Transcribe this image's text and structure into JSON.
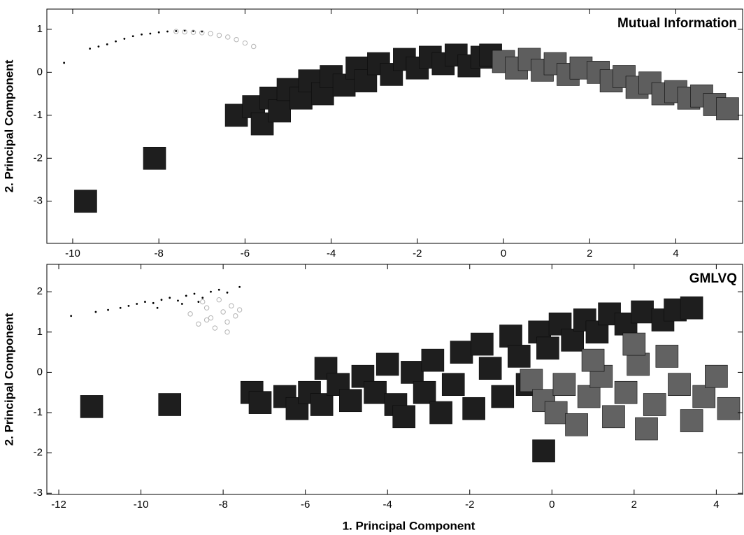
{
  "chart_data": [
    {
      "type": "scatter",
      "title": "Mutual Information",
      "y_label": "2. Principal Component",
      "xlim": [
        -10.6,
        5.55
      ],
      "ylim": [
        -3.98,
        1.47
      ],
      "xticks": [
        -10,
        -8,
        -6,
        -4,
        -2,
        0,
        2,
        4
      ],
      "yticks": [
        -3,
        -2,
        -1,
        0,
        1
      ],
      "series": [
        {
          "color": "#1e1e1e",
          "marker": "square",
          "x": [
            -6.2,
            -5.8,
            -5.6,
            -5.4,
            -5.2,
            -5,
            -4.7,
            -4.5,
            -4.2,
            -4,
            -3.7,
            -3.4,
            -3.2,
            -2.9,
            -2.6,
            -2.3,
            -2,
            -1.7,
            -1.4,
            -1.1,
            -0.8,
            -0.5,
            -0.3,
            -8.1,
            -9.7
          ],
          "y": [
            -1.0,
            -0.8,
            -1.2,
            -0.6,
            -0.9,
            -0.4,
            -0.6,
            -0.2,
            -0.5,
            -0.1,
            -0.3,
            0.1,
            -0.2,
            0.2,
            -0.05,
            0.3,
            0.1,
            0.35,
            0.2,
            0.4,
            0.15,
            0.35,
            0.4,
            -2.0,
            -3.0
          ]
        },
        {
          "color": "#5e5e5e",
          "marker": "square",
          "x": [
            0,
            0.3,
            0.6,
            0.9,
            1.2,
            1.5,
            1.8,
            2.2,
            2.5,
            2.8,
            3.1,
            3.4,
            3.7,
            4,
            4.3,
            4.6,
            4.9,
            5.2
          ],
          "y": [
            0.25,
            0.1,
            0.3,
            0.05,
            0.2,
            -0.05,
            0.1,
            0,
            -0.2,
            -0.1,
            -0.35,
            -0.25,
            -0.5,
            -0.45,
            -0.6,
            -0.55,
            -0.75,
            -0.85
          ]
        },
        {
          "color": "#000000",
          "marker": "dot",
          "x": [
            -10.2,
            -9.6,
            -9.4,
            -9.2,
            -9,
            -8.8,
            -8.6,
            -8.4,
            -8.2,
            -8,
            -7.8,
            -7.6,
            -7.4,
            -7.2,
            -7
          ],
          "y": [
            0.22,
            0.55,
            0.6,
            0.65,
            0.72,
            0.78,
            0.84,
            0.88,
            0.9,
            0.93,
            0.95,
            0.96,
            0.97,
            0.96,
            0.95
          ]
        },
        {
          "color": "#b4b4b4",
          "marker": "circle",
          "x": [
            -7.6,
            -7.4,
            -7.2,
            -7,
            -6.8,
            -6.6,
            -6.4,
            -6.2,
            -6,
            -5.8
          ],
          "y": [
            0.95,
            0.94,
            0.93,
            0.92,
            0.9,
            0.86,
            0.82,
            0.76,
            0.68,
            0.6
          ]
        }
      ]
    },
    {
      "type": "scatter",
      "title": "GMLVQ",
      "x_label": "1. Principal Component",
      "y_label": "2. Principal Component",
      "xlim": [
        -12.29,
        4.64
      ],
      "ylim": [
        -3.03,
        2.68
      ],
      "xticks": [
        -12,
        -10,
        -8,
        -6,
        -4,
        -2,
        0,
        2,
        4
      ],
      "yticks": [
        -3,
        -2,
        -1,
        0,
        1,
        2
      ],
      "series": [
        {
          "color": "#1e1e1e",
          "marker": "square",
          "x": [
            -11.2,
            -9.3,
            -7.3,
            -7.1,
            -6.5,
            -6.2,
            -5.9,
            -5.6,
            -5.5,
            -5.2,
            -4.9,
            -4.6,
            -4.3,
            -4,
            -3.8,
            -3.6,
            -3.4,
            -3.1,
            -2.9,
            -2.7,
            -2.4,
            -2.2,
            -1.9,
            -1.7,
            -1.5,
            -1.2,
            -1,
            -0.8,
            -0.6,
            -0.3,
            -0.1,
            0.2,
            0.5,
            0.8,
            1.1,
            1.4,
            1.8,
            2.2,
            2.7,
            3.0,
            3.4,
            -0.2
          ],
          "y": [
            -0.85,
            -0.8,
            -0.5,
            -0.75,
            -0.6,
            -0.9,
            -0.5,
            -0.8,
            0.1,
            -0.3,
            -0.7,
            -0.1,
            -0.5,
            0.2,
            -0.8,
            -1.1,
            0,
            -0.5,
            0.3,
            -1.0,
            -0.3,
            0.5,
            -0.9,
            0.7,
            0.1,
            -0.6,
            0.9,
            0.4,
            -0.3,
            1.0,
            0.6,
            1.2,
            0.8,
            1.3,
            1.0,
            1.45,
            1.2,
            1.5,
            1.3,
            1.55,
            1.6,
            -1.95
          ]
        },
        {
          "color": "#626262",
          "marker": "square",
          "x": [
            -0.5,
            -0.2,
            0.1,
            0.3,
            0.6,
            0.9,
            1.2,
            1.5,
            1.8,
            2.1,
            2.3,
            2.5,
            2.8,
            3.1,
            3.4,
            3.7,
            4.0,
            4.3,
            1.0,
            2.0
          ],
          "y": [
            -0.2,
            -0.7,
            -1.0,
            -0.3,
            -1.3,
            -0.6,
            -0.1,
            -1.1,
            -0.5,
            0.2,
            -1.4,
            -0.8,
            0.4,
            -0.3,
            -1.2,
            -0.6,
            -0.1,
            -0.9,
            0.3,
            0.7
          ]
        },
        {
          "color": "#000000",
          "marker": "dot",
          "x": [
            -11.7,
            -11.1,
            -10.8,
            -10.5,
            -10.3,
            -10.1,
            -9.9,
            -9.7,
            -9.5,
            -9.3,
            -9.1,
            -8.9,
            -8.7,
            -8.5,
            -8.3,
            -8.1,
            -7.9,
            -7.6,
            -9.6,
            -9.0,
            -8.6
          ],
          "y": [
            1.4,
            1.5,
            1.55,
            1.6,
            1.65,
            1.7,
            1.75,
            1.72,
            1.8,
            1.85,
            1.78,
            1.9,
            1.95,
            1.85,
            2.0,
            2.05,
            1.98,
            2.12,
            1.6,
            1.7,
            1.75
          ]
        },
        {
          "color": "#b4b4b4",
          "marker": "circle",
          "x": [
            -8.8,
            -8.6,
            -8.4,
            -8.3,
            -8.2,
            -8.0,
            -7.9,
            -7.8,
            -7.7,
            -7.6,
            -8.5,
            -8.1,
            -7.9,
            -8.4
          ],
          "y": [
            1.45,
            1.2,
            1.6,
            1.35,
            1.1,
            1.5,
            1.25,
            1.65,
            1.4,
            1.55,
            1.75,
            1.8,
            1.0,
            1.3
          ]
        }
      ]
    }
  ]
}
